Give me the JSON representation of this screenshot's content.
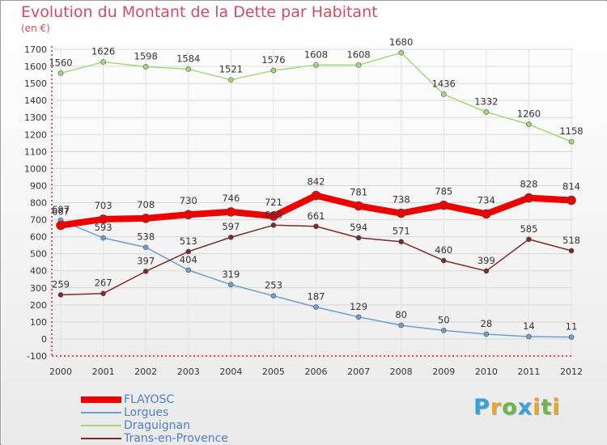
{
  "header": {
    "title": "Evolution du Montant de la Dette par Habitant",
    "unit": "(en €)"
  },
  "chart_data": {
    "type": "line",
    "title": "Evolution du Montant de la Dette par Habitant",
    "subtitle": "(en €)",
    "x": [
      "2000",
      "2001",
      "2002",
      "2003",
      "2004",
      "2005",
      "2006",
      "2007",
      "2008",
      "2009",
      "2010",
      "2011",
      "2012"
    ],
    "ylim": [
      -100,
      1700
    ],
    "yticks": [
      -100,
      0,
      100,
      200,
      300,
      400,
      500,
      600,
      700,
      800,
      900,
      1000,
      1100,
      1200,
      1300,
      1400,
      1500,
      1600,
      1700
    ],
    "grid": true,
    "legend_position": "bottom-left",
    "series": [
      {
        "name": "FLAYOSC",
        "color": "#ee0000",
        "values": [
          667,
          703,
          708,
          730,
          746,
          721,
          842,
          781,
          738,
          785,
          734,
          828,
          814
        ]
      },
      {
        "name": "Lorgues",
        "color": "#6b9fd0",
        "values": [
          697,
          593,
          538,
          404,
          319,
          253,
          187,
          129,
          80,
          50,
          28,
          14,
          11
        ]
      },
      {
        "name": "Draguignan",
        "color": "#a4d87a",
        "values": [
          1560,
          1626,
          1598,
          1584,
          1521,
          1576,
          1608,
          1608,
          1680,
          1436,
          1332,
          1260,
          1158
        ]
      },
      {
        "name": "Trans-en-Provence",
        "color": "#7a2a2a",
        "values": [
          259,
          267,
          397,
          513,
          597,
          668,
          661,
          594,
          571,
          460,
          399,
          585,
          518
        ]
      }
    ]
  },
  "brand": {
    "letters": [
      {
        "ch": "P",
        "color": "#3aa1d6"
      },
      {
        "ch": "r",
        "color": "#e5a72a"
      },
      {
        "ch": "o",
        "color": "#6bb64a"
      },
      {
        "ch": "x",
        "color": "#3aa1d6"
      },
      {
        "ch": "i",
        "color": "#e5a72a"
      },
      {
        "ch": "t",
        "color": "#6bb64a"
      },
      {
        "ch": "i",
        "color": "#e5a72a"
      }
    ]
  }
}
